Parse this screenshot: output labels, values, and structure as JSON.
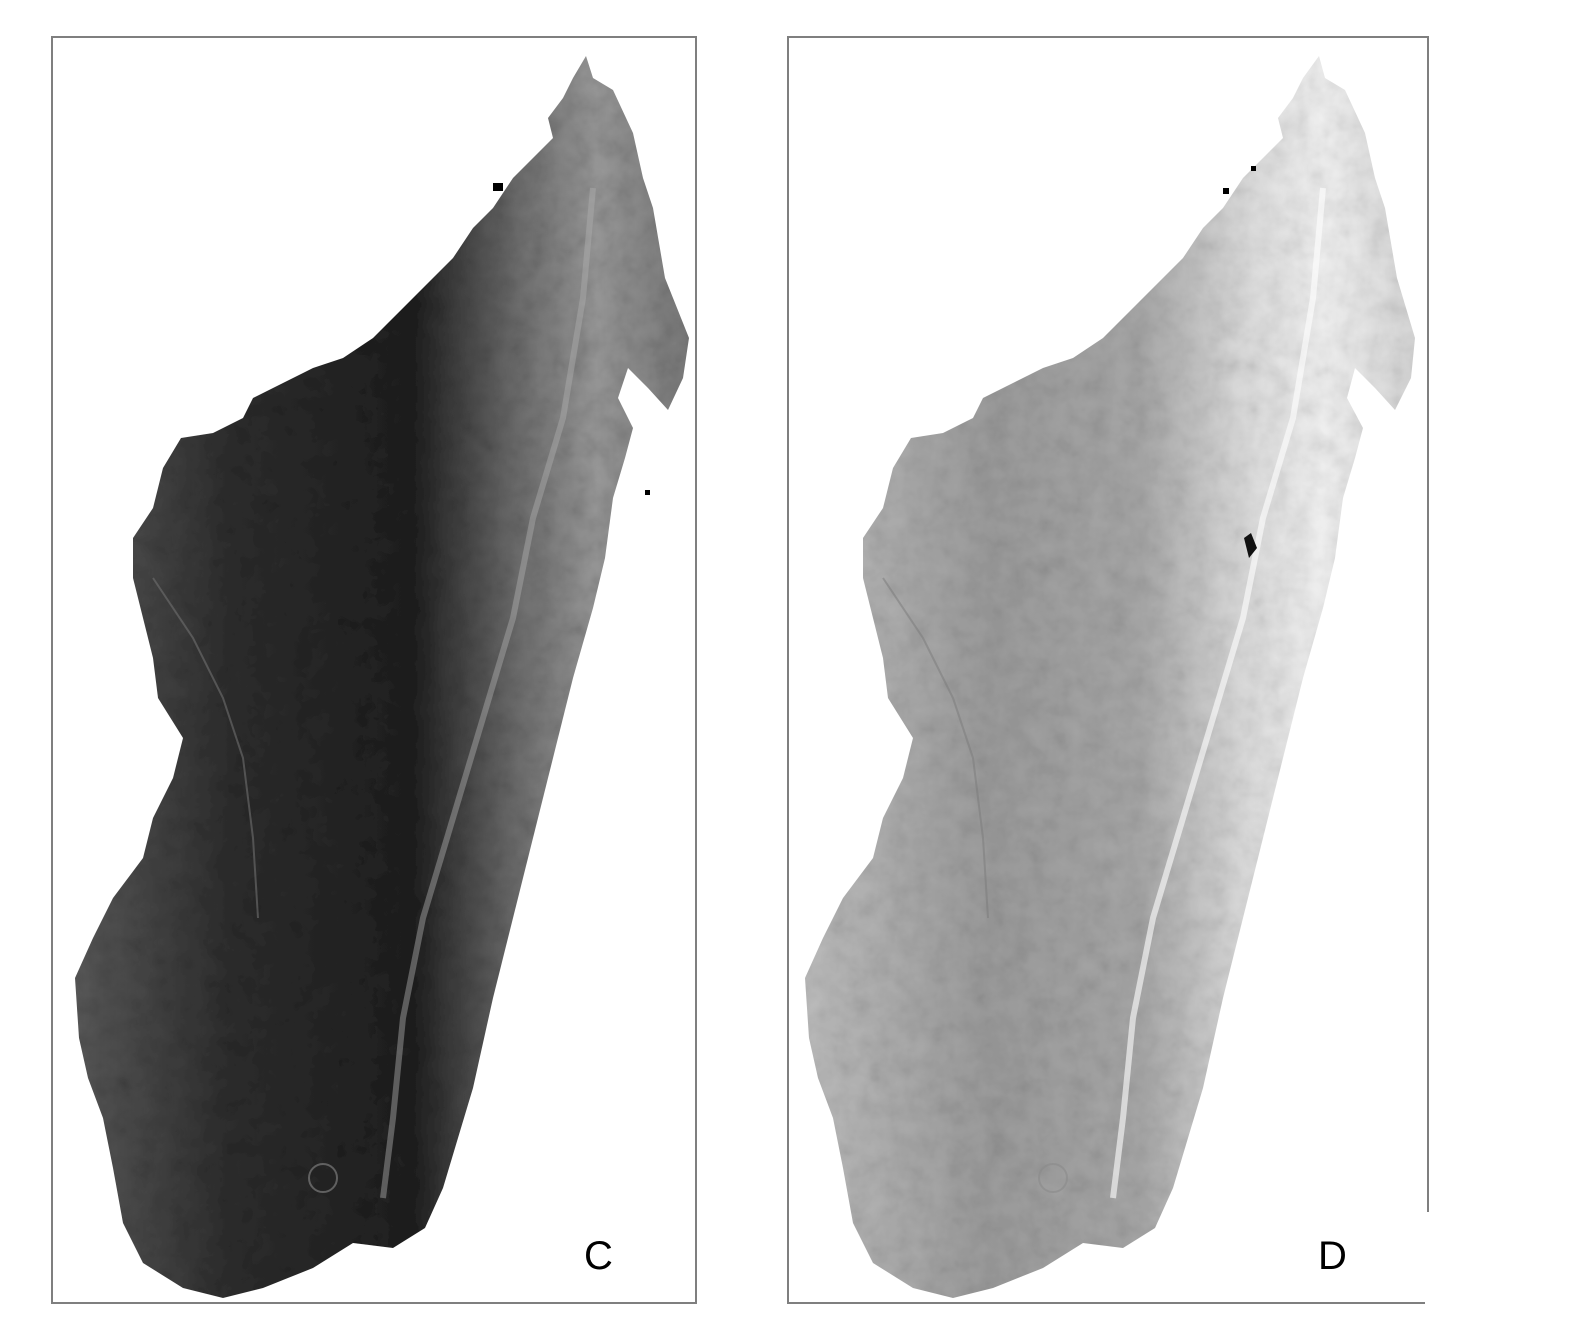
{
  "panels": [
    {
      "id": "C",
      "label": "C",
      "tone": "dark",
      "base_color": "#3a3a3a",
      "bright_color": "#a8a8a8"
    },
    {
      "id": "D",
      "label": "D",
      "tone": "light",
      "base_color": "#9a9a9a",
      "bright_color": "#efefef"
    }
  ]
}
